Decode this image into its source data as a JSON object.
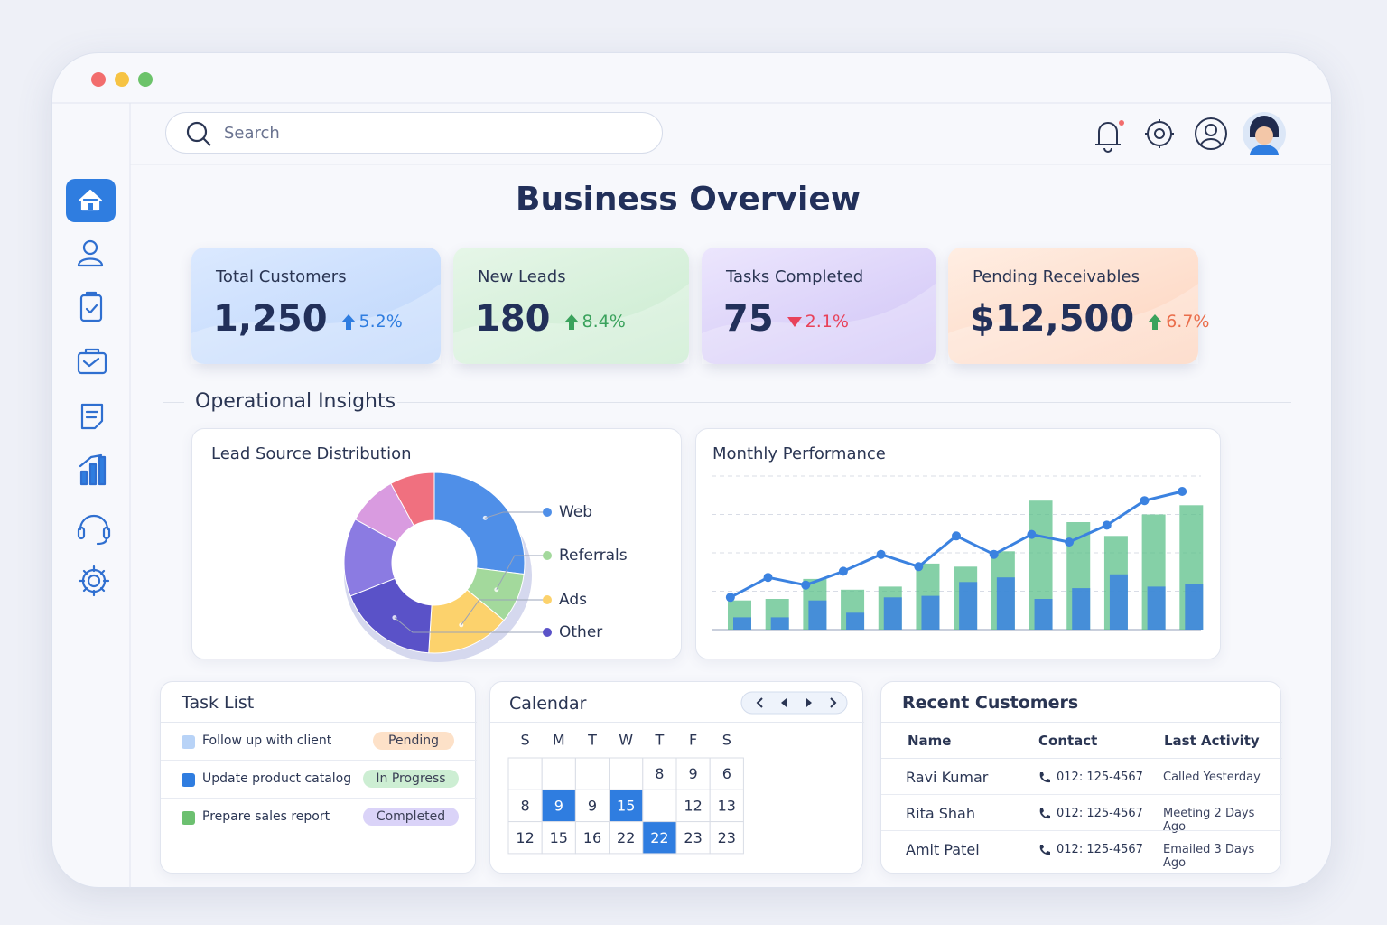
{
  "search_placeholder": "Search",
  "title": "Business Overview",
  "kpis": [
    {
      "label": "Total Customers",
      "value": "1,250",
      "change": "5.2%",
      "direction": "up",
      "arrow_color": "#2f7de0",
      "change_color": "#2f7de0",
      "bg": [
        "#dbe9ff",
        "#bcd5fb"
      ]
    },
    {
      "label": "New Leads",
      "value": "180",
      "change": "8.4%",
      "direction": "up",
      "arrow_color": "#3aa25c",
      "change_color": "#3aa25c",
      "bg": [
        "#e6f6e8",
        "#c9ebcf"
      ]
    },
    {
      "label": "Tasks Completed",
      "value": "75",
      "change": "2.1%",
      "direction": "down",
      "arrow_color": "#e8425a",
      "change_color": "#e8425a",
      "bg": [
        "#ece6fd",
        "#cfc3f6"
      ]
    },
    {
      "label": "Pending Receivables",
      "value": "$12,500",
      "change": "6.7%",
      "direction": "up",
      "arrow_color": "#3aa25c",
      "change_color": "#ea6d4a",
      "bg": [
        "#ffeee3",
        "#fdd3bd"
      ]
    }
  ],
  "section_title": "Operational Insights",
  "lead_sources": {
    "type": "pie",
    "title": "Lead Source Distribution",
    "categories": [
      "Web",
      "Referrals",
      "Ads",
      "Other",
      null,
      null,
      null
    ],
    "values": [
      27,
      9,
      15,
      18,
      14,
      9,
      8
    ],
    "colors": [
      "#4f8fe8",
      "#a3d99c",
      "#fcd26c",
      "#5a52c8",
      "#8b7be2",
      "#d99be0",
      "#f0707f"
    ]
  },
  "monthly_performance": {
    "type": "combo",
    "title": "Monthly Performance",
    "categories": [
      null,
      null,
      null,
      null,
      null,
      null,
      null,
      null,
      null,
      null,
      null,
      null,
      null
    ],
    "series": [
      {
        "kind": "bar",
        "color": "#5cc08a",
        "values": [
          19,
          20,
          33,
          26,
          28,
          43,
          41,
          51,
          84,
          70,
          61,
          75,
          81
        ]
      },
      {
        "kind": "bar",
        "color": "#3b82e0",
        "values": [
          8,
          8,
          19,
          11,
          21,
          22,
          31,
          34,
          20,
          27,
          36,
          28,
          30
        ]
      },
      {
        "kind": "line",
        "color": "#3b82e0",
        "values": [
          21,
          34,
          29,
          38,
          49,
          41,
          61,
          49,
          62,
          57,
          68,
          84,
          90
        ]
      }
    ],
    "ylim": [
      0,
      100
    ],
    "yticks": [
      0,
      25,
      50,
      75,
      100
    ],
    "grid": true
  },
  "task_list": {
    "title": "Task List",
    "tasks": [
      {
        "text": "Follow up with client",
        "status": "Pending",
        "color": "#b8d3f7",
        "status_color": "#fde1c8"
      },
      {
        "text": "Update product catalog",
        "status": "In Progress",
        "color": "#2f7de0",
        "status_color": "#cdeed3"
      },
      {
        "text": "Prepare sales report",
        "status": "Completed",
        "color": "#6cc070",
        "status_color": "#dad3f8"
      }
    ]
  },
  "calendar": {
    "title": "Calendar",
    "weekdays": [
      "S",
      "M",
      "T",
      "W",
      "T",
      "F",
      "S"
    ],
    "rows": [
      [
        null,
        null,
        null,
        null,
        "8",
        "9",
        "6"
      ],
      [
        "8",
        "9",
        "9",
        "15",
        null,
        "12",
        "13"
      ],
      [
        "12",
        "15",
        "16",
        "22",
        "22",
        "23",
        "23"
      ]
    ],
    "selected": [
      [
        1,
        1
      ],
      [
        1,
        3
      ],
      [
        2,
        4
      ]
    ]
  },
  "recent_customers": {
    "title": "Recent Customers",
    "columns": [
      "Name",
      "Contact",
      "Last Activity"
    ],
    "rows": [
      [
        "Ravi Kumar",
        "012: 125-4567",
        "Called Yesterday"
      ],
      [
        "Rita Shah",
        "012: 125-4567",
        "Meeting 2 Days Ago"
      ],
      [
        "Amit Patel",
        "012: 125-4567",
        "Emailed 3 Days Ago"
      ]
    ]
  }
}
